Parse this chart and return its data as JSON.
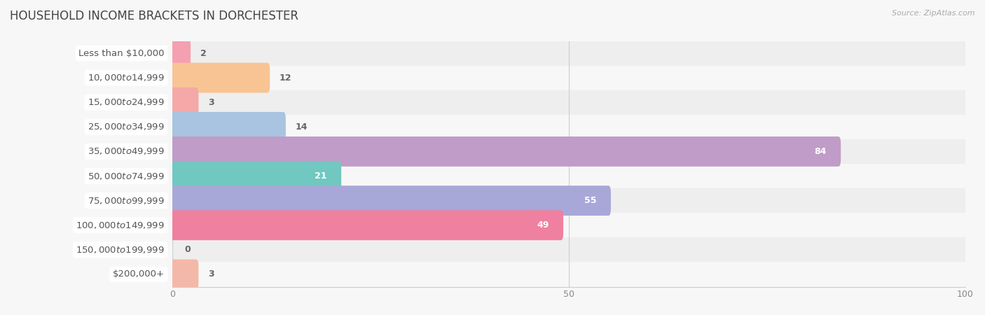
{
  "title": "HOUSEHOLD INCOME BRACKETS IN DORCHESTER",
  "source": "Source: ZipAtlas.com",
  "categories": [
    "Less than $10,000",
    "$10,000 to $14,999",
    "$15,000 to $24,999",
    "$25,000 to $34,999",
    "$35,000 to $49,999",
    "$50,000 to $74,999",
    "$75,000 to $99,999",
    "$100,000 to $149,999",
    "$150,000 to $199,999",
    "$200,000+"
  ],
  "values": [
    2,
    12,
    3,
    14,
    84,
    21,
    55,
    49,
    0,
    3
  ],
  "colors": [
    "#F4A0B0",
    "#F8C494",
    "#F5A8A8",
    "#A8C4E0",
    "#C09CC8",
    "#70C8C0",
    "#A8A8D8",
    "#F080A0",
    "#F8C890",
    "#F4B8A8"
  ],
  "xlim": [
    0,
    100
  ],
  "xticks": [
    0,
    50,
    100
  ],
  "bar_height": 0.62,
  "bg_color": "#f7f7f7",
  "row_bg_even": "#eeeeee",
  "row_bg_odd": "#f7f7f7",
  "label_color": "#555555",
  "value_color_inside": "#ffffff",
  "value_color_outside": "#666666",
  "title_fontsize": 12,
  "label_fontsize": 9.5,
  "value_fontsize": 9,
  "inside_threshold": 20
}
